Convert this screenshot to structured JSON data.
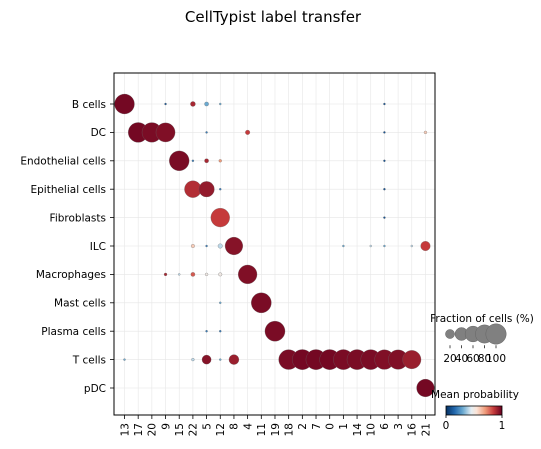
{
  "chart_data": {
    "type": "dotplot",
    "title": "CellTypist label transfer",
    "categories_y": [
      "B cells",
      "DC",
      "Endothelial cells",
      "Epithelial cells",
      "Fibroblasts",
      "ILC",
      "Macrophages",
      "Mast cells",
      "Plasma cells",
      "T cells",
      "pDC"
    ],
    "categories_x": [
      "13",
      "17",
      "20",
      "9",
      "15",
      "22",
      "5",
      "12",
      "8",
      "4",
      "11",
      "19",
      "18",
      "2",
      "7",
      "0",
      "1",
      "14",
      "10",
      "6",
      "3",
      "16",
      "21"
    ],
    "points": [
      {
        "y": "B cells",
        "x": "13",
        "fraction": 95,
        "mean": 0.98
      },
      {
        "y": "B cells",
        "x": "22",
        "fraction": 6,
        "mean": 0.9
      },
      {
        "y": "B cells",
        "x": "5",
        "fraction": 4,
        "mean": 0.3
      },
      {
        "y": "B cells",
        "x": "12",
        "fraction": 1,
        "mean": 0.3
      },
      {
        "y": "B cells",
        "x": "9",
        "fraction": 1,
        "mean": 0.1
      },
      {
        "y": "B cells",
        "x": "6",
        "fraction": 1,
        "mean": 0.1
      },
      {
        "y": "DC",
        "x": "17",
        "fraction": 95,
        "mean": 0.98
      },
      {
        "y": "DC",
        "x": "20",
        "fraction": 93,
        "mean": 0.97
      },
      {
        "y": "DC",
        "x": "9",
        "fraction": 88,
        "mean": 0.96
      },
      {
        "y": "DC",
        "x": "4",
        "fraction": 5,
        "mean": 0.85
      },
      {
        "y": "DC",
        "x": "5",
        "fraction": 1,
        "mean": 0.2
      },
      {
        "y": "DC",
        "x": "6",
        "fraction": 1,
        "mean": 0.1
      },
      {
        "y": "DC",
        "x": "21",
        "fraction": 2,
        "mean": 0.6
      },
      {
        "y": "Endothelial cells",
        "x": "15",
        "fraction": 95,
        "mean": 0.97
      },
      {
        "y": "Endothelial cells",
        "x": "5",
        "fraction": 4,
        "mean": 0.9
      },
      {
        "y": "Endothelial cells",
        "x": "12",
        "fraction": 2,
        "mean": 0.7
      },
      {
        "y": "Endothelial cells",
        "x": "22",
        "fraction": 1,
        "mean": 0.2
      },
      {
        "y": "Endothelial cells",
        "x": "6",
        "fraction": 1,
        "mean": 0.1
      },
      {
        "y": "Epithelial cells",
        "x": "22",
        "fraction": 68,
        "mean": 0.88
      },
      {
        "y": "Epithelial cells",
        "x": "5",
        "fraction": 58,
        "mean": 0.93
      },
      {
        "y": "Epithelial cells",
        "x": "12",
        "fraction": 1,
        "mean": 0.2
      },
      {
        "y": "Epithelial cells",
        "x": "6",
        "fraction": 1,
        "mean": 0.1
      },
      {
        "y": "Fibroblasts",
        "x": "12",
        "fraction": 85,
        "mean": 0.85
      },
      {
        "y": "Fibroblasts",
        "x": "6",
        "fraction": 1,
        "mean": 0.1
      },
      {
        "y": "ILC",
        "x": "8",
        "fraction": 75,
        "mean": 0.95
      },
      {
        "y": "ILC",
        "x": "22",
        "fraction": 3,
        "mean": 0.6
      },
      {
        "y": "ILC",
        "x": "12",
        "fraction": 5,
        "mean": 0.4
      },
      {
        "y": "ILC",
        "x": "5",
        "fraction": 1,
        "mean": 0.2
      },
      {
        "y": "ILC",
        "x": "1",
        "fraction": 1,
        "mean": 0.3
      },
      {
        "y": "ILC",
        "x": "10",
        "fraction": 1,
        "mean": 0.4
      },
      {
        "y": "ILC",
        "x": "6",
        "fraction": 1,
        "mean": 0.3
      },
      {
        "y": "ILC",
        "x": "16",
        "fraction": 1,
        "mean": 0.4
      },
      {
        "y": "ILC",
        "x": "21",
        "fraction": 22,
        "mean": 0.85
      },
      {
        "y": "Macrophages",
        "x": "4",
        "fraction": 85,
        "mean": 0.96
      },
      {
        "y": "Macrophages",
        "x": "9",
        "fraction": 2,
        "mean": 0.9
      },
      {
        "y": "Macrophages",
        "x": "22",
        "fraction": 4,
        "mean": 0.8
      },
      {
        "y": "Macrophages",
        "x": "5",
        "fraction": 2,
        "mean": 0.5
      },
      {
        "y": "Macrophages",
        "x": "12",
        "fraction": 3,
        "mean": 0.5
      },
      {
        "y": "Macrophages",
        "x": "15",
        "fraction": 1,
        "mean": 0.4
      },
      {
        "y": "Mast cells",
        "x": "11",
        "fraction": 97,
        "mean": 0.97
      },
      {
        "y": "Mast cells",
        "x": "12",
        "fraction": 1,
        "mean": 0.3
      },
      {
        "y": "Plasma cells",
        "x": "19",
        "fraction": 97,
        "mean": 0.97
      },
      {
        "y": "Plasma cells",
        "x": "5",
        "fraction": 1,
        "mean": 0.2
      },
      {
        "y": "Plasma cells",
        "x": "12",
        "fraction": 1,
        "mean": 0.2
      },
      {
        "y": "T cells",
        "x": "18",
        "fraction": 95,
        "mean": 0.97
      },
      {
        "y": "T cells",
        "x": "2",
        "fraction": 98,
        "mean": 0.98
      },
      {
        "y": "T cells",
        "x": "7",
        "fraction": 98,
        "mean": 0.98
      },
      {
        "y": "T cells",
        "x": "0",
        "fraction": 98,
        "mean": 0.98
      },
      {
        "y": "T cells",
        "x": "1",
        "fraction": 97,
        "mean": 0.97
      },
      {
        "y": "T cells",
        "x": "14",
        "fraction": 97,
        "mean": 0.97
      },
      {
        "y": "T cells",
        "x": "10",
        "fraction": 96,
        "mean": 0.97
      },
      {
        "y": "T cells",
        "x": "6",
        "fraction": 93,
        "mean": 0.96
      },
      {
        "y": "T cells",
        "x": "3",
        "fraction": 92,
        "mean": 0.96
      },
      {
        "y": "T cells",
        "x": "16",
        "fraction": 82,
        "mean": 0.92
      },
      {
        "y": "T cells",
        "x": "5",
        "fraction": 20,
        "mean": 0.95
      },
      {
        "y": "T cells",
        "x": "8",
        "fraction": 24,
        "mean": 0.92
      },
      {
        "y": "T cells",
        "x": "13",
        "fraction": 1,
        "mean": 0.3
      },
      {
        "y": "T cells",
        "x": "22",
        "fraction": 2,
        "mean": 0.4
      },
      {
        "y": "T cells",
        "x": "12",
        "fraction": 1,
        "mean": 0.3
      },
      {
        "y": "pDC",
        "x": "21",
        "fraction": 75,
        "mean": 0.98
      }
    ],
    "size_legend": {
      "title": "Fraction of cells (%)",
      "ticks": [
        "20",
        "40",
        "60",
        "80",
        "100"
      ]
    },
    "color_legend": {
      "title": "Mean probability",
      "ticks": [
        "0",
        "1"
      ],
      "colormap": "RdBu_r"
    },
    "grid": true
  }
}
